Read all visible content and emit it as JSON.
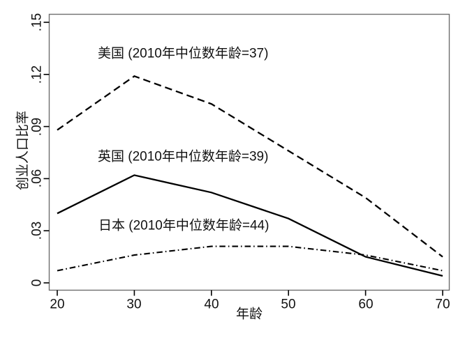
{
  "figure": {
    "background": "#ffffff",
    "frame_color": "#6e6e6e",
    "text_color": "#111111",
    "line_color": "#000000"
  },
  "chart_data": {
    "type": "line",
    "title": "",
    "xlabel": "年龄",
    "ylabel": "创业人口比率",
    "x": [
      20,
      30,
      40,
      50,
      60,
      70
    ],
    "xlim": [
      20,
      70
    ],
    "ylim": [
      0,
      0.15
    ],
    "x_tick_labels": [
      "20",
      "30",
      "40",
      "50",
      "60",
      "70"
    ],
    "y_ticks": [
      0,
      0.03,
      0.06,
      0.09,
      0.12,
      0.15
    ],
    "y_tick_labels": [
      "0",
      ".03",
      ".06",
      ".09",
      ".12",
      ".15"
    ],
    "grid": false,
    "legend_position": "inline-annotations",
    "series": [
      {
        "id": "usa",
        "name": "美国",
        "label": "美国 (2010年中位数年龄=37)",
        "line_style": "long-dash",
        "color": "#000000",
        "values": [
          0.088,
          0.119,
          0.103,
          0.076,
          0.049,
          0.015
        ]
      },
      {
        "id": "uk",
        "name": "英国",
        "label": "英国 (2010年中位数年龄=39)",
        "line_style": "solid",
        "color": "#000000",
        "values": [
          0.04,
          0.062,
          0.052,
          0.037,
          0.015,
          0.004
        ]
      },
      {
        "id": "japan",
        "name": "日本",
        "label": "日本 (2010年中位数年龄=44)",
        "line_style": "dash-dot",
        "color": "#000000",
        "values": [
          0.007,
          0.016,
          0.021,
          0.021,
          0.016,
          0.007
        ]
      }
    ]
  }
}
